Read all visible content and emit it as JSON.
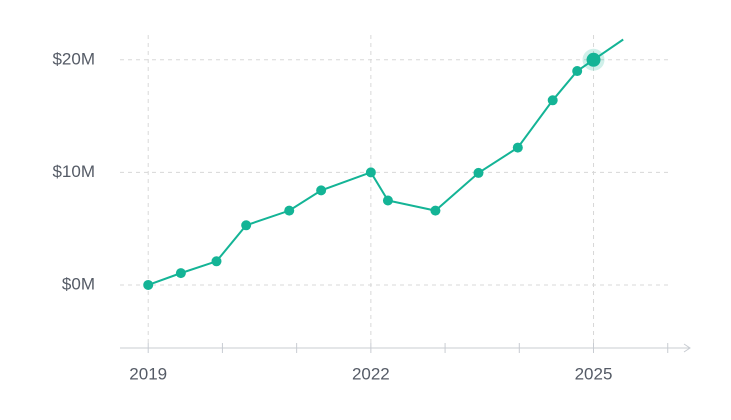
{
  "chart_data": {
    "type": "line",
    "x": [
      2019.0,
      2019.44,
      2019.92,
      2020.32,
      2020.9,
      2021.33,
      2022.0,
      2022.23,
      2022.87,
      2023.45,
      2023.98,
      2024.45,
      2024.78,
      2025.0,
      2025.4
    ],
    "series": [
      {
        "color": "#14b496",
        "values": [
          0,
          1.05,
          2.1,
          5.3,
          6.6,
          8.4,
          10,
          7.5,
          6.6,
          9.95,
          12.2,
          16.4,
          19.0,
          20,
          21.8
        ]
      }
    ],
    "highlight": 13,
    "xlim": [
      2018.62,
      2026.3
    ],
    "xticks": [
      2019,
      2022,
      2025
    ],
    "xminorticks": [
      2020,
      2021,
      2023,
      2024,
      2026
    ],
    "ylim": [
      -5.6,
      22.2
    ],
    "yticks": [
      {
        "value": 0,
        "label": "$0M"
      },
      {
        "value": 10,
        "label": "$10M"
      },
      {
        "value": 20,
        "label": "$20M"
      }
    ],
    "grid": true
  }
}
